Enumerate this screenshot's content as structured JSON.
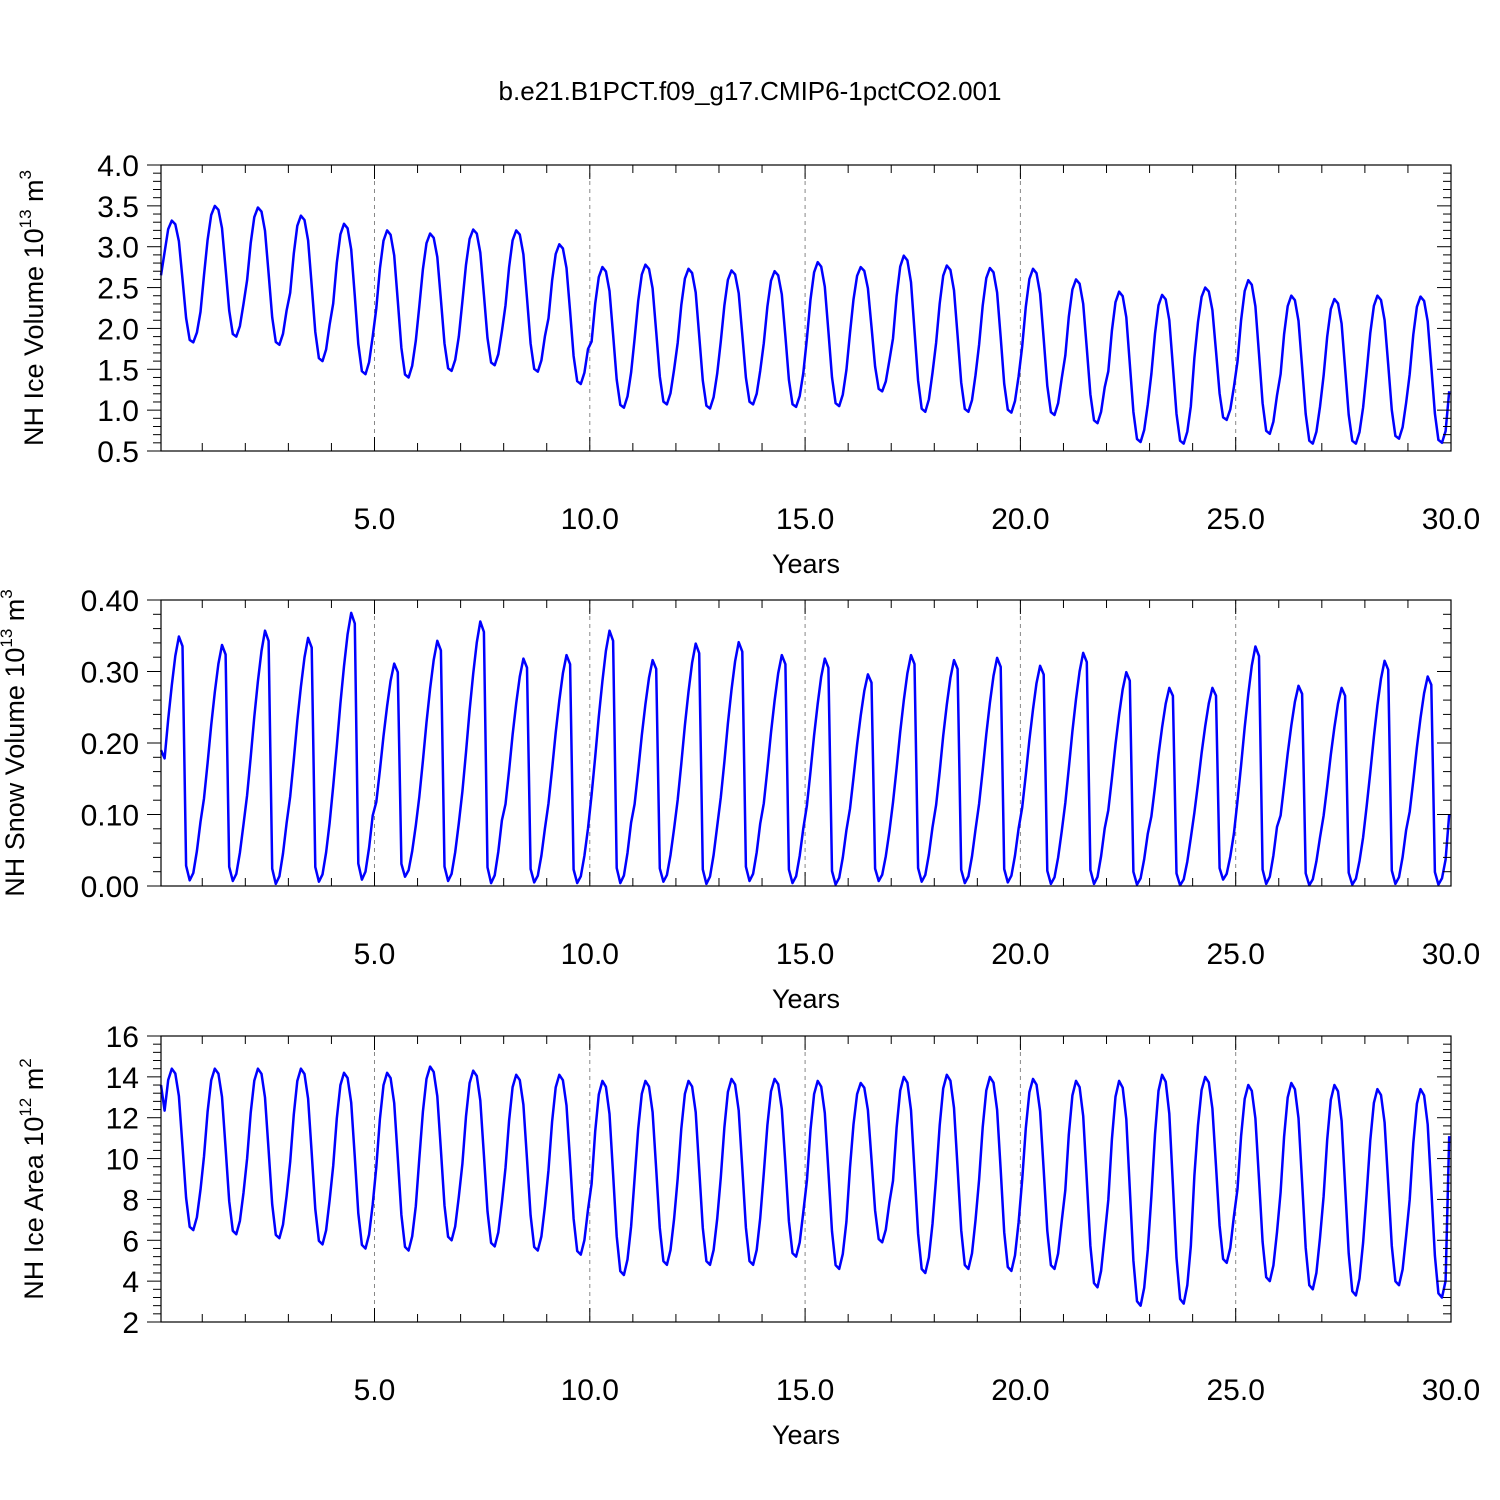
{
  "figure": {
    "title": "b.e21.B1PCT.f09_g17.CMIP6-1pctCO2.001"
  },
  "chart_data": [
    {
      "type": "line",
      "name": "ice-volume",
      "ylabel": {
        "text": "NH Ice Volume 10",
        "exp": "13",
        "unit": " m",
        "unit_exp": "3"
      },
      "xlabel": "Years",
      "xlim": [
        0.042,
        30.0
      ],
      "ylim": [
        0.5,
        4.0
      ],
      "xticks": [
        5,
        10,
        15,
        20,
        25,
        30
      ],
      "xtick_labels": [
        "5.0",
        "10.0",
        "15.0",
        "20.0",
        "25.0",
        "30.0"
      ],
      "yticks": [
        0.5,
        1.0,
        1.5,
        2.0,
        2.5,
        3.0,
        3.5,
        4.0
      ],
      "ytick_labels": [
        "0.5",
        "1.0",
        "1.5",
        "2.0",
        "2.5",
        "3.0",
        "3.5",
        "4.0"
      ],
      "grid": "vertical-dashed-at-major-ticks",
      "color": "#0000ff",
      "years": {
        "max": [
          3.32,
          3.5,
          3.48,
          3.38,
          3.28,
          3.2,
          3.16,
          3.21,
          3.2,
          3.03,
          2.75,
          2.78,
          2.73,
          2.71,
          2.7,
          2.81,
          2.75,
          2.89,
          2.77,
          2.74,
          2.73,
          2.6,
          2.45,
          2.41,
          2.5,
          2.59,
          2.4,
          2.36,
          2.4,
          2.39
        ],
        "min": [
          1.83,
          1.9,
          1.8,
          1.6,
          1.44,
          1.4,
          1.48,
          1.55,
          1.47,
          1.32,
          1.03,
          1.07,
          1.02,
          1.07,
          1.04,
          1.05,
          1.23,
          0.98,
          0.98,
          0.97,
          0.94,
          0.84,
          0.61,
          0.59,
          0.88,
          0.71,
          0.59,
          0.59,
          0.65,
          0.6
        ]
      },
      "start": 2.65,
      "end": 1.23
    },
    {
      "type": "line",
      "name": "snow-volume",
      "ylabel": {
        "text": "NH Snow Volume 10",
        "exp": "13",
        "unit": " m",
        "unit_exp": "3"
      },
      "xlabel": "Years",
      "xlim": [
        0.042,
        30.0
      ],
      "ylim": [
        0.0,
        0.4
      ],
      "xticks": [
        5,
        10,
        15,
        20,
        25,
        30
      ],
      "xtick_labels": [
        "5.0",
        "10.0",
        "15.0",
        "20.0",
        "25.0",
        "30.0"
      ],
      "yticks": [
        0.0,
        0.1,
        0.2,
        0.3,
        0.4
      ],
      "ytick_labels": [
        "0.00",
        "0.10",
        "0.20",
        "0.30",
        "0.40"
      ],
      "grid": "vertical-dashed-at-major-ticks",
      "color": "#0000ff",
      "years": {
        "max": [
          0.349,
          0.337,
          0.357,
          0.347,
          0.382,
          0.311,
          0.343,
          0.37,
          0.318,
          0.323,
          0.357,
          0.316,
          0.339,
          0.341,
          0.323,
          0.318,
          0.296,
          0.323,
          0.316,
          0.319,
          0.308,
          0.326,
          0.299,
          0.277,
          0.277,
          0.335,
          0.28,
          0.277,
          0.315,
          0.293
        ],
        "min": [
          0.008,
          0.007,
          0.003,
          0.006,
          0.009,
          0.013,
          0.007,
          0.004,
          0.005,
          0.004,
          0.004,
          0.006,
          0.003,
          0.007,
          0.004,
          0.002,
          0.007,
          0.006,
          0.004,
          0.005,
          0.003,
          0.003,
          0.002,
          0.001,
          0.009,
          0.003,
          0.001,
          0.002,
          0.003,
          0.002
        ]
      },
      "start": 0.19,
      "end": 0.1
    },
    {
      "type": "line",
      "name": "ice-area",
      "ylabel": {
        "text": "NH Ice Area 10",
        "exp": "12",
        "unit": " m",
        "unit_exp": "2"
      },
      "xlabel": "Years",
      "xlim": [
        0.042,
        30.0
      ],
      "ylim": [
        2,
        16
      ],
      "xticks": [
        5,
        10,
        15,
        20,
        25,
        30
      ],
      "xtick_labels": [
        "5.0",
        "10.0",
        "15.0",
        "20.0",
        "25.0",
        "30.0"
      ],
      "yticks": [
        2,
        4,
        6,
        8,
        10,
        12,
        14,
        16
      ],
      "ytick_labels": [
        "2",
        "4",
        "6",
        "8",
        "10",
        "12",
        "14",
        "16"
      ],
      "grid": "vertical-dashed-at-major-ticks",
      "color": "#0000ff",
      "years": {
        "max": [
          14.4,
          14.4,
          14.4,
          14.4,
          14.2,
          14.2,
          14.5,
          14.3,
          14.1,
          14.1,
          13.8,
          13.8,
          13.8,
          13.9,
          13.9,
          13.8,
          13.7,
          14.0,
          14.1,
          14.0,
          13.9,
          13.8,
          13.8,
          14.1,
          14.0,
          13.6,
          13.7,
          13.6,
          13.4,
          13.4
        ],
        "min": [
          6.5,
          6.3,
          6.1,
          5.8,
          5.6,
          5.5,
          6.0,
          5.7,
          5.5,
          5.3,
          4.3,
          4.8,
          4.8,
          4.8,
          5.2,
          4.6,
          5.9,
          4.4,
          4.6,
          4.5,
          4.6,
          3.7,
          2.8,
          2.9,
          4.9,
          4.0,
          3.6,
          3.3,
          3.8,
          3.2
        ]
      },
      "start": 13.6,
      "end": 11.1
    }
  ]
}
